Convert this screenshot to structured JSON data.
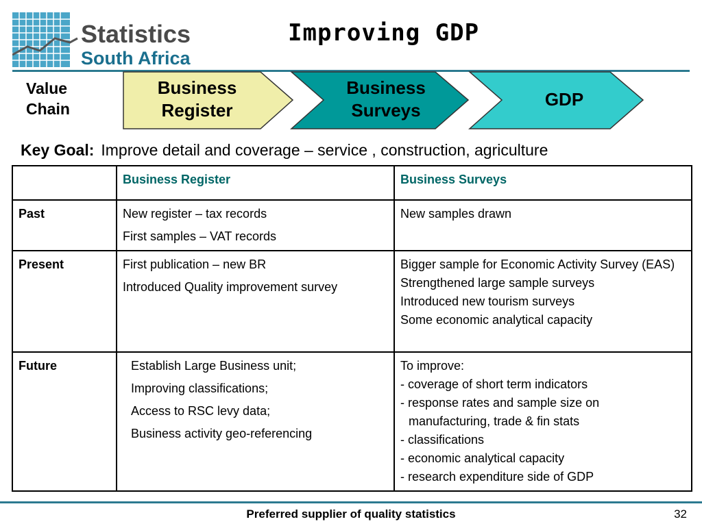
{
  "header": {
    "logo_line1": "Statistics",
    "logo_line2": "South Africa",
    "title": "Improving GDP"
  },
  "value_chain": {
    "label_line1": "Value",
    "label_line2": "Chain",
    "steps": [
      {
        "line1": "Business",
        "line2": "Register",
        "color": "#f0eeaa"
      },
      {
        "line1": "Business",
        "line2": "Surveys",
        "color": "#009999"
      },
      {
        "line1": "GDP",
        "line2": "",
        "color": "#33cccc"
      }
    ]
  },
  "key_goal": {
    "label": "Key Goal:",
    "text": "Improve detail and coverage – service , construction,  agriculture"
  },
  "table": {
    "headers": [
      "",
      "Business Register",
      "Business Surveys"
    ],
    "rows": [
      {
        "label": "Past",
        "register": [
          "New register – tax records",
          "First samples – VAT records"
        ],
        "surveys": [
          "New samples drawn"
        ]
      },
      {
        "label": "Present",
        "register": [
          "First publication – new BR",
          "Introduced Quality improvement survey"
        ],
        "surveys": [
          "Bigger sample for Economic Activity Survey (EAS)",
          "Strengthened large sample surveys",
          "Introduced new tourism surveys",
          "Some economic analytical capacity"
        ]
      },
      {
        "label": "Future",
        "register": [
          "Establish Large Business unit;",
          "Improving classifications;",
          "Access to RSC levy data;",
          "Business activity geo-referencing"
        ],
        "surveys": [
          "To improve:",
          "- coverage of short term indicators",
          "- response rates and sample size on",
          "manufacturing, trade & fin stats",
          "- classifications",
          "- economic analytical capacity",
          "- research expenditure side of GDP"
        ]
      }
    ]
  },
  "footer": {
    "tagline": "Preferred supplier of quality statistics",
    "page": "32"
  },
  "colors": {
    "accent_rule": "#2c7a90",
    "header_text": "#006666"
  }
}
